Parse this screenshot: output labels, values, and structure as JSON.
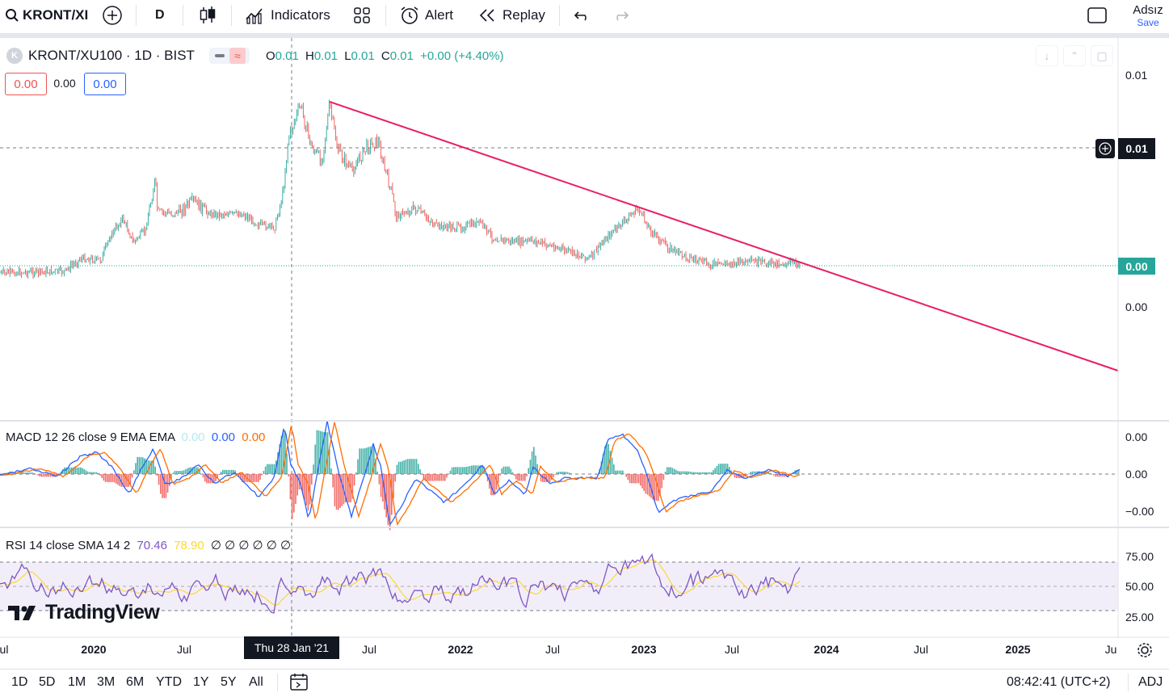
{
  "toolbar": {
    "symbol": "KRONT/XI",
    "interval": "D",
    "indicators_label": "Indicators",
    "alert_label": "Alert",
    "replay_label": "Replay",
    "layout_name": "Adsız",
    "save_label": "Save"
  },
  "legend": {
    "symbol_title": "KRONT/XU100 · 1D · BIST",
    "logo_letter": "K",
    "o_label": "O",
    "o_value": "0.01",
    "h_label": "H",
    "h_value": "0.01",
    "l_label": "L",
    "l_value": "0.01",
    "c_label": "C",
    "c_value": "0.01",
    "change": "+0.00 (+4.40%)",
    "sell_price": "0.00",
    "spread": "0.00",
    "buy_price": "0.00"
  },
  "price_axis": {
    "top_label": "0.01",
    "crosshair_label": "0.01",
    "last_price": "0.00",
    "lower_label": "0.00"
  },
  "macd": {
    "title": "MACD 12 26 close 9 EMA EMA",
    "v1": "0.00",
    "v2": "0.00",
    "v3": "0.00",
    "axis": [
      "0.00",
      "0.00",
      "−0.00"
    ]
  },
  "rsi": {
    "title": "RSI 14 close SMA 14 2",
    "v1": "70.46",
    "v2": "78.90",
    "extra": "∅ ∅ ∅ ∅ ∅ ∅",
    "axis": [
      "75.00",
      "50.00",
      "25.00"
    ]
  },
  "watermark": "TradingView",
  "time_axis": {
    "labels": [
      {
        "text": "ul",
        "year": false
      },
      {
        "text": "2020",
        "year": true
      },
      {
        "text": "Jul",
        "year": false
      },
      {
        "text": "Jul",
        "year": false
      },
      {
        "text": "2022",
        "year": true
      },
      {
        "text": "Jul",
        "year": false
      },
      {
        "text": "2023",
        "year": true
      },
      {
        "text": "Jul",
        "year": false
      },
      {
        "text": "2024",
        "year": true
      },
      {
        "text": "Jul",
        "year": false
      },
      {
        "text": "2025",
        "year": true
      },
      {
        "text": "Ju",
        "year": false
      }
    ],
    "crosshair_date": "Thu 28 Jan '21"
  },
  "bottom": {
    "ranges": [
      "1D",
      "5D",
      "1M",
      "3M",
      "6M",
      "YTD",
      "1Y",
      "5Y",
      "All"
    ],
    "clock": "08:42:41 (UTC+2)",
    "adj": "ADJ"
  },
  "colors": {
    "up": "#26a69a",
    "down": "#ef5350",
    "trendline": "#e91e63",
    "macd_line": "#2962ff",
    "signal_line": "#ff6d00",
    "rsi_line": "#7e57c2",
    "rsi_sma": "#fdd835",
    "text": "#131722"
  }
}
